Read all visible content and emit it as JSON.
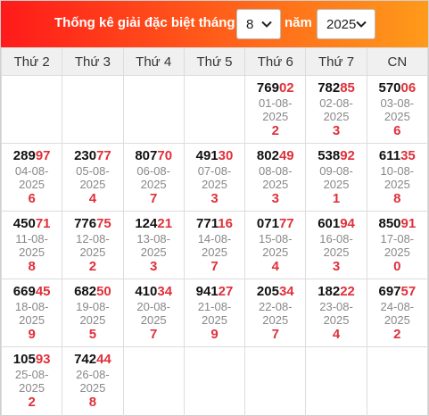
{
  "header": {
    "title": "Thống kê giải đặc biệt tháng",
    "month": "8",
    "nam_label": "năm",
    "year": "2025"
  },
  "weekdays": [
    "Thứ 2",
    "Thứ 3",
    "Thứ 4",
    "Thứ 5",
    "Thứ 6",
    "Thứ 7",
    "CN"
  ],
  "weeks": [
    [
      null,
      null,
      null,
      null,
      {
        "head": "769",
        "end": "02",
        "date1": "01-08-",
        "date2": "2025",
        "tail": "2"
      },
      {
        "head": "782",
        "end": "85",
        "date1": "02-08-",
        "date2": "2025",
        "tail": "3"
      },
      {
        "head": "570",
        "end": "06",
        "date1": "03-08-",
        "date2": "2025",
        "tail": "6"
      }
    ],
    [
      {
        "head": "289",
        "end": "97",
        "date1": "04-08-",
        "date2": "2025",
        "tail": "6"
      },
      {
        "head": "230",
        "end": "77",
        "date1": "05-08-",
        "date2": "2025",
        "tail": "4"
      },
      {
        "head": "807",
        "end": "70",
        "date1": "06-08-",
        "date2": "2025",
        "tail": "7"
      },
      {
        "head": "491",
        "end": "30",
        "date1": "07-08-",
        "date2": "2025",
        "tail": "3"
      },
      {
        "head": "802",
        "end": "49",
        "date1": "08-08-",
        "date2": "2025",
        "tail": "3"
      },
      {
        "head": "538",
        "end": "92",
        "date1": "09-08-",
        "date2": "2025",
        "tail": "1"
      },
      {
        "head": "611",
        "end": "35",
        "date1": "10-08-",
        "date2": "2025",
        "tail": "8"
      }
    ],
    [
      {
        "head": "450",
        "end": "71",
        "date1": "11-08-",
        "date2": "2025",
        "tail": "8"
      },
      {
        "head": "776",
        "end": "75",
        "date1": "12-08-",
        "date2": "2025",
        "tail": "2"
      },
      {
        "head": "124",
        "end": "21",
        "date1": "13-08-",
        "date2": "2025",
        "tail": "3"
      },
      {
        "head": "771",
        "end": "16",
        "date1": "14-08-",
        "date2": "2025",
        "tail": "7"
      },
      {
        "head": "071",
        "end": "77",
        "date1": "15-08-",
        "date2": "2025",
        "tail": "4"
      },
      {
        "head": "601",
        "end": "94",
        "date1": "16-08-",
        "date2": "2025",
        "tail": "3"
      },
      {
        "head": "850",
        "end": "91",
        "date1": "17-08-",
        "date2": "2025",
        "tail": "0"
      }
    ],
    [
      {
        "head": "669",
        "end": "45",
        "date1": "18-08-",
        "date2": "2025",
        "tail": "9"
      },
      {
        "head": "682",
        "end": "50",
        "date1": "19-08-",
        "date2": "2025",
        "tail": "5"
      },
      {
        "head": "410",
        "end": "34",
        "date1": "20-08-",
        "date2": "2025",
        "tail": "7"
      },
      {
        "head": "941",
        "end": "27",
        "date1": "21-08-",
        "date2": "2025",
        "tail": "9"
      },
      {
        "head": "205",
        "end": "34",
        "date1": "22-08-",
        "date2": "2025",
        "tail": "7"
      },
      {
        "head": "182",
        "end": "22",
        "date1": "23-08-",
        "date2": "2025",
        "tail": "4"
      },
      {
        "head": "697",
        "end": "57",
        "date1": "24-08-",
        "date2": "2025",
        "tail": "2"
      }
    ],
    [
      {
        "head": "105",
        "end": "93",
        "date1": "25-08-",
        "date2": "2025",
        "tail": "2"
      },
      {
        "head": "742",
        "end": "44",
        "date1": "26-08-",
        "date2": "2025",
        "tail": "8"
      },
      null,
      null,
      null,
      null,
      null
    ]
  ],
  "colors": {
    "accent_red": "#e0303a",
    "header_start": "#ff1a1a",
    "header_end": "#ff9a1a"
  }
}
